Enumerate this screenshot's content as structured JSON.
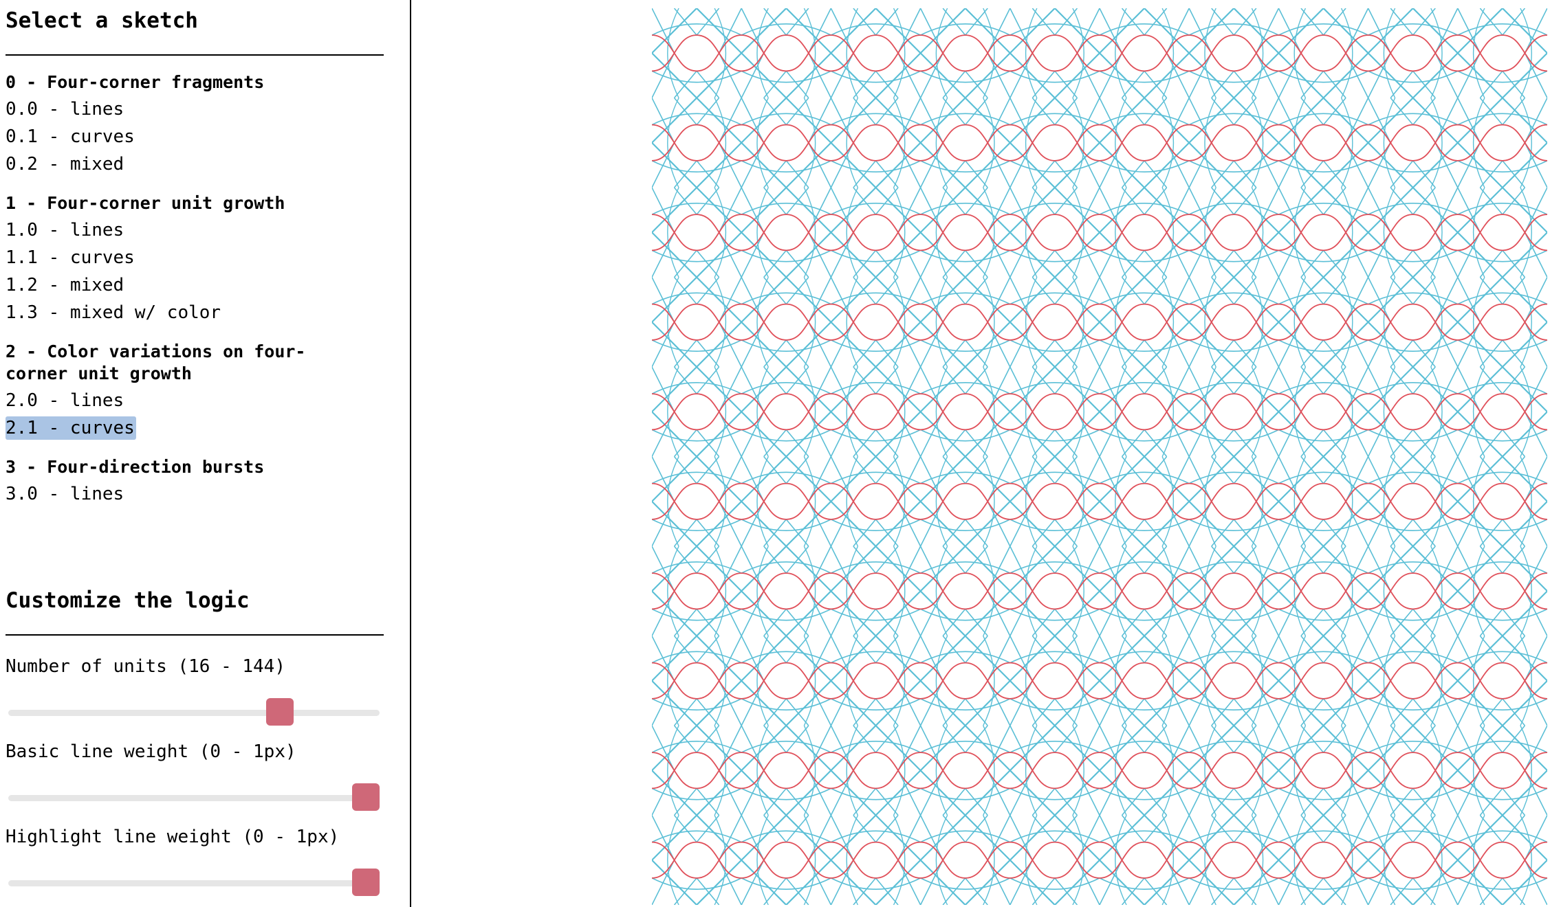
{
  "sidebar": {
    "sketch_heading": "Select a sketch",
    "groups": [
      {
        "title": "0 - Four-corner fragments",
        "items": [
          "0.0 - lines",
          "0.1 - curves",
          "0.2 - mixed"
        ]
      },
      {
        "title": "1 - Four-corner unit growth",
        "items": [
          "1.0 - lines",
          "1.1 - curves",
          "1.2 - mixed",
          "1.3 - mixed w/ color"
        ]
      },
      {
        "title_line1": "2 - Color variations on four-",
        "title_line2": "corner unit growth",
        "items": [
          "2.0 - lines",
          "2.1 - curves"
        ]
      },
      {
        "title": "3 - Four-direction bursts",
        "items": [
          "3.0 - lines"
        ]
      }
    ],
    "selected_item": "2.1 - curves",
    "customize_heading": "Customize the logic",
    "sliders": [
      {
        "label": "Number of units (16 - 144)",
        "min": 16,
        "max": 144,
        "value": 112
      },
      {
        "label": "Basic line weight (0 - 1px)",
        "min": 0,
        "max": 1,
        "value": 1
      },
      {
        "label": "Highlight line weight (0 - 1px)",
        "min": 0,
        "max": 1,
        "value": 1
      }
    ]
  },
  "sketch": {
    "base_color": "#5bbfd6",
    "highlight_color": "#e0505a",
    "background": "#ffffff"
  }
}
